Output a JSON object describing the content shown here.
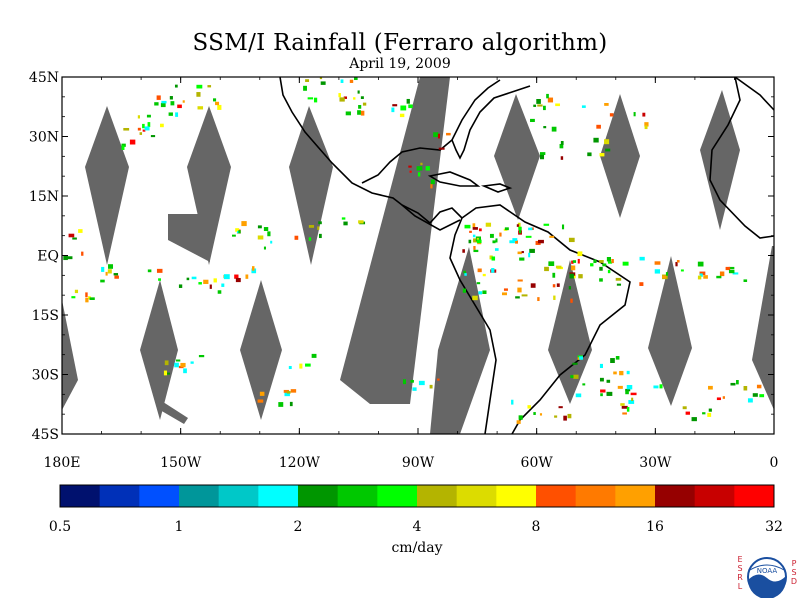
{
  "title": "SSM/I Rainfall (Ferraro algorithm)",
  "date": "April 19, 2009",
  "map": {
    "lon_range": [
      -180,
      0
    ],
    "lat_range": [
      -45,
      45
    ],
    "lat_ticks": [
      {
        "value": 45,
        "label": "45N"
      },
      {
        "value": 30,
        "label": "30N"
      },
      {
        "value": 15,
        "label": "15N"
      },
      {
        "value": 0,
        "label": "EQ"
      },
      {
        "value": -15,
        "label": "15S"
      },
      {
        "value": -30,
        "label": "30S"
      },
      {
        "value": -45,
        "label": "45S"
      }
    ],
    "lon_ticks": [
      {
        "value": -180,
        "label": "180E"
      },
      {
        "value": -150,
        "label": "150W"
      },
      {
        "value": -120,
        "label": "120W"
      },
      {
        "value": -90,
        "label": "90W"
      },
      {
        "value": -60,
        "label": "60W"
      },
      {
        "value": -30,
        "label": "30W"
      },
      {
        "value": 0,
        "label": "0"
      }
    ],
    "no_data_color": "#666666"
  },
  "colorbar": {
    "unit": "cm/day",
    "tick_labels": [
      "0.5",
      "1",
      "2",
      "4",
      "8",
      "16",
      "32"
    ],
    "colors": [
      "#00116e",
      "#0030b8",
      "#0050ff",
      "#00969a",
      "#00c8c8",
      "#00ffff",
      "#009600",
      "#00c800",
      "#00ff00",
      "#b4b400",
      "#dcdc00",
      "#ffff00",
      "#ff5000",
      "#ff7a00",
      "#ffa000",
      "#960000",
      "#c80000",
      "#ff0000"
    ]
  },
  "logo": {
    "left_letters": [
      "E",
      "S",
      "R",
      "L"
    ],
    "right_letters": [
      "P",
      "S",
      "D"
    ],
    "emblem": "NOAA"
  }
}
